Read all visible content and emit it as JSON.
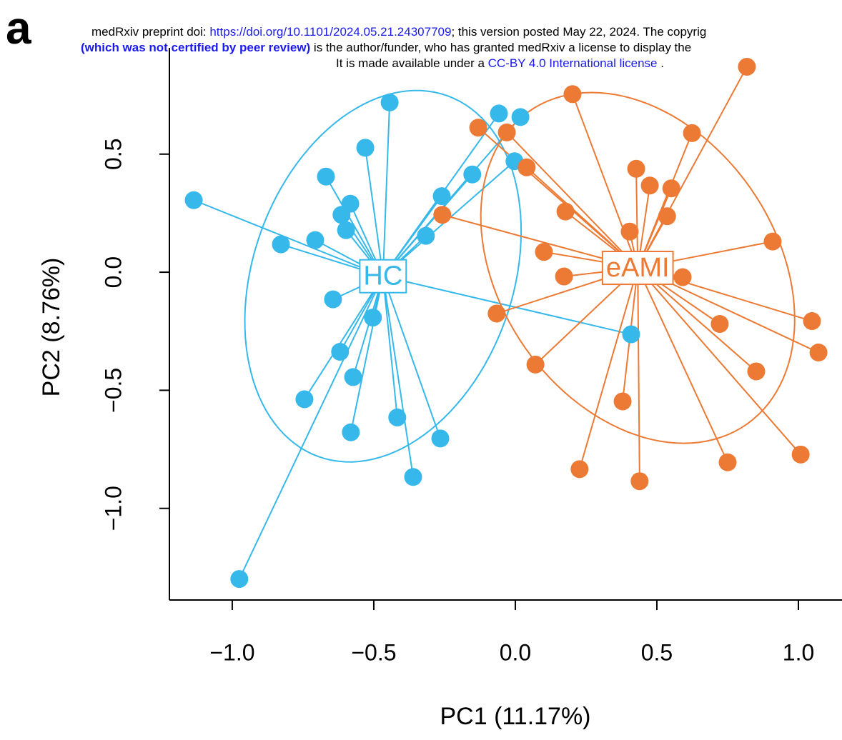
{
  "panel_label": "a",
  "header": {
    "line1": [
      "medRxiv preprint doi: ",
      "https://doi.org/10.1101/2024.05.21.24307709",
      "; this version posted May 22, 2024. The copyrig"
    ],
    "line2": [
      "(which was not certified by peer review)",
      " is the author/funder, who has granted medRxiv a license to display the"
    ],
    "line3": [
      "It is made available under a ",
      "CC-BY 4.0 International license",
      " ."
    ]
  },
  "chart_data": {
    "type": "scatter",
    "x_label": "PC1 (11.17%)",
    "y_label": "PC2 (8.76%)",
    "xlim": [
      -1.222,
      1.154
    ],
    "ylim": [
      -1.388,
      0.95
    ],
    "xticks": [
      {
        "value": -1,
        "label": "−1.0"
      },
      {
        "value": -0.5,
        "label": "−0.5"
      },
      {
        "value": 0,
        "label": "0.0"
      },
      0.5,
      {
        "value": 1,
        "label": "1.0"
      }
    ],
    "yticks": [
      {
        "value": -1,
        "label": "−1.0"
      },
      {
        "value": -0.5,
        "label": "−0.5"
      },
      {
        "value": 0,
        "label": "0.0"
      },
      0.5
    ],
    "series": [
      {
        "name": "HC",
        "color": "#36b9ea",
        "x": [
          -1.136,
          -0.828,
          -0.707,
          -0.669,
          -0.614,
          -0.583,
          -0.598,
          -0.53,
          -0.444,
          -0.058,
          0.018,
          -0.152,
          -0.26,
          -0.316,
          -0.003,
          -0.644,
          -0.503,
          -0.619,
          -0.745,
          -0.573,
          -0.581,
          -0.417,
          -0.265,
          -0.361,
          -0.975,
          0.409
        ],
        "y": [
          0.305,
          0.118,
          0.136,
          0.405,
          0.243,
          0.29,
          0.178,
          0.527,
          0.719,
          0.672,
          0.657,
          0.414,
          0.322,
          0.154,
          0.47,
          -0.115,
          -0.192,
          -0.337,
          -0.538,
          -0.444,
          -0.678,
          -0.615,
          -0.704,
          -0.867,
          -1.299,
          -0.263
        ]
      },
      {
        "name": "eAMI",
        "color": "#ec7a35",
        "x": [
          0.818,
          0.202,
          -0.131,
          -0.03,
          0.624,
          0.427,
          0.475,
          0.551,
          0.04,
          -0.258,
          0.177,
          0.536,
          0.404,
          0.909,
          0.101,
          0.172,
          0.591,
          -0.066,
          0.722,
          1.048,
          1.071,
          0.071,
          0.851,
          0.379,
          0.227,
          0.439,
          0.75,
          1.008
        ],
        "y": [
          0.87,
          0.754,
          0.612,
          0.592,
          0.589,
          0.438,
          0.367,
          0.355,
          0.444,
          0.243,
          0.257,
          0.237,
          0.172,
          0.13,
          0.086,
          -0.018,
          -0.021,
          -0.175,
          -0.219,
          -0.207,
          -0.34,
          -0.391,
          -0.42,
          -0.547,
          -0.834,
          -0.885,
          -0.805,
          -0.772
        ]
      }
    ]
  }
}
